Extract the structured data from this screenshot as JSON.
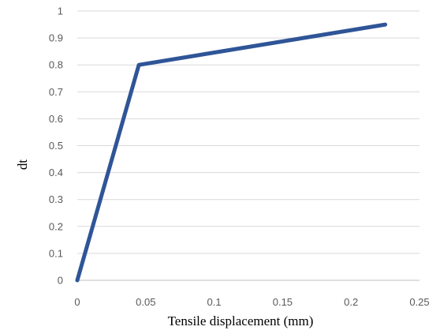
{
  "chart_data": {
    "type": "line",
    "title": "",
    "xlabel": "Tensile displacement (mm)",
    "ylabel": "dt",
    "xlim": [
      0,
      0.25
    ],
    "ylim": [
      0,
      1
    ],
    "x_ticks": [
      "0",
      "0.05",
      "0.1",
      "0.15",
      "0.2",
      "0.25"
    ],
    "y_ticks": [
      "0",
      "0.1",
      "0.2",
      "0.3",
      "0.4",
      "0.5",
      "0.6",
      "0.7",
      "0.8",
      "0.9",
      "1"
    ],
    "grid": "horizontal",
    "legend": "none",
    "series": [
      {
        "color": "#2f5597",
        "x": [
          0,
          0.045,
          0.225
        ],
        "y": [
          0,
          0.8,
          0.95
        ]
      }
    ]
  }
}
